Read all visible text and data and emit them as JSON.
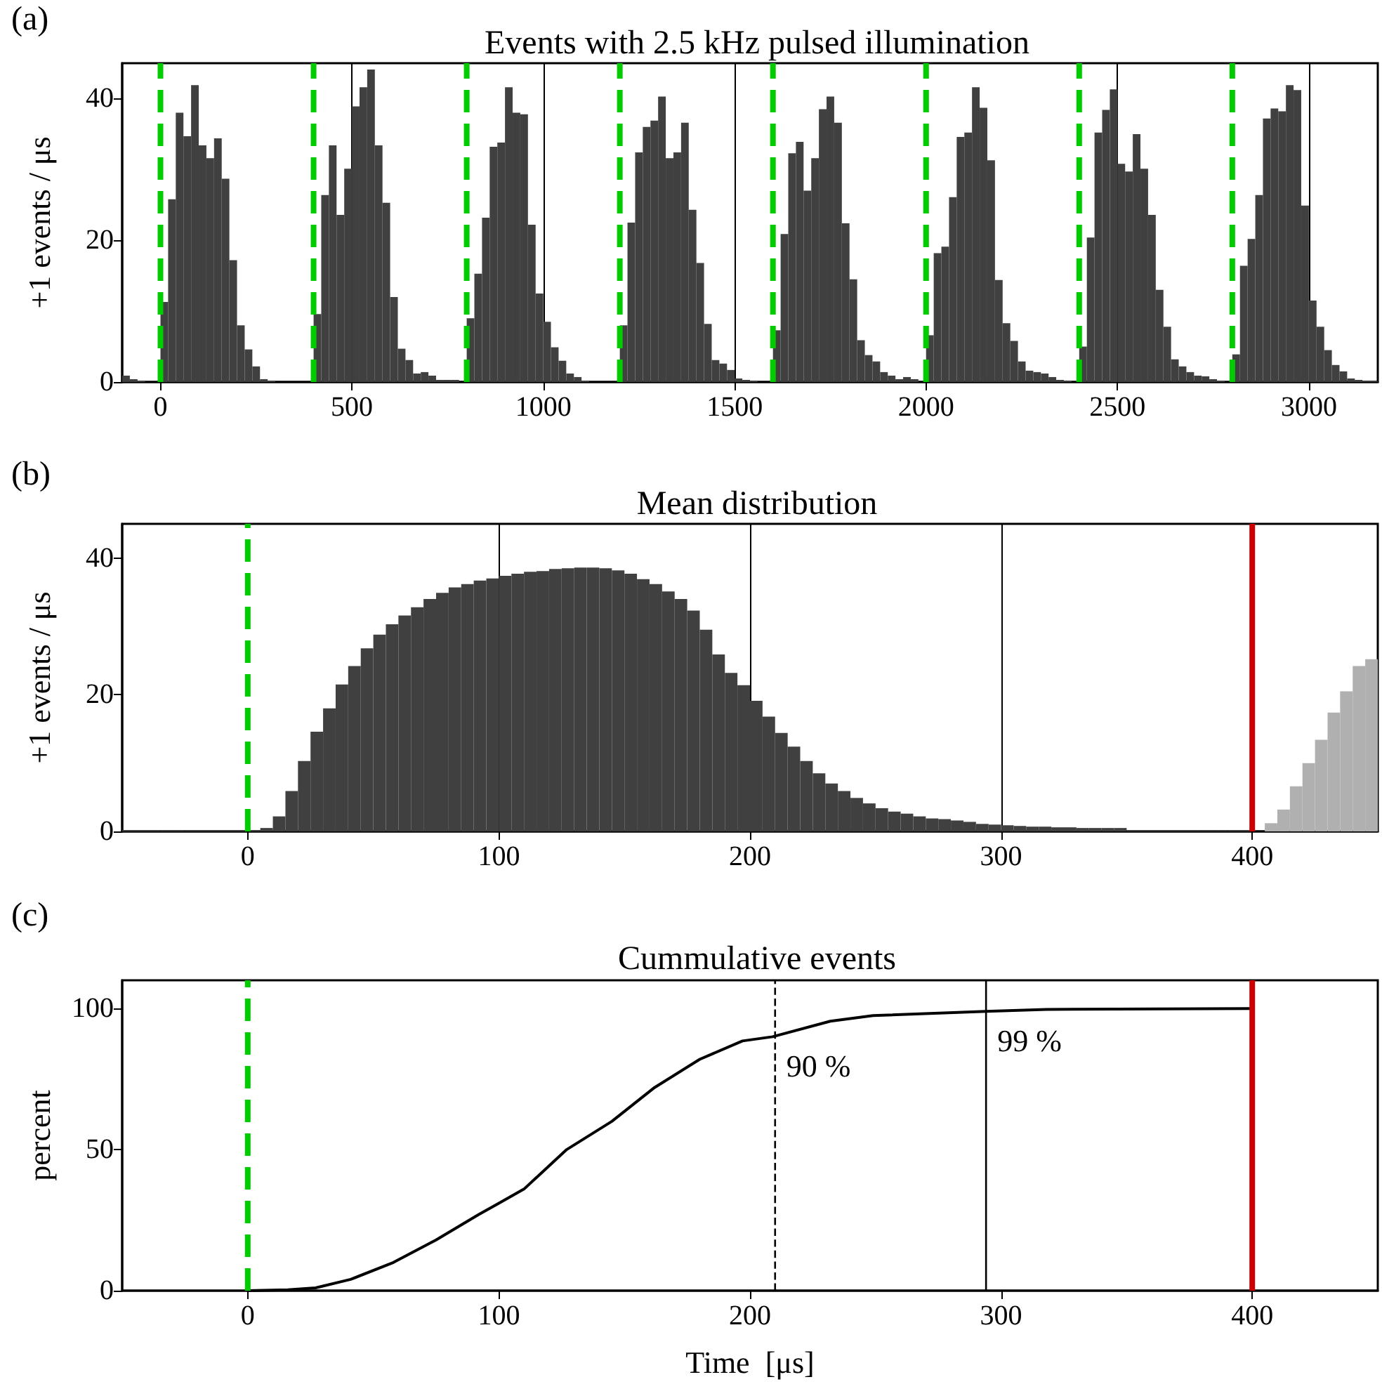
{
  "chart_data": [
    {
      "type": "histogram",
      "title": "Events with 2.5 kHz pulsed illumination",
      "ylabel": "+1 events / μs",
      "annotations": [
        "(a)"
      ],
      "color": "#404040",
      "bins": [
        -100,
        -80,
        -60,
        -40,
        -20,
        0,
        20,
        40,
        60,
        80,
        100,
        120,
        140,
        160,
        180,
        200,
        220,
        240,
        260,
        280,
        300,
        320,
        340,
        360,
        380,
        400,
        420,
        440,
        460,
        480,
        500,
        520,
        540,
        560,
        580,
        600,
        620,
        640,
        660,
        680,
        700,
        720,
        740,
        760,
        780,
        800,
        820,
        840,
        860,
        880,
        900,
        920,
        940,
        960,
        980,
        1000,
        1020,
        1040,
        1060,
        1080,
        1100,
        1120,
        1140,
        1160,
        1180,
        1200,
        1220,
        1240,
        1260,
        1280,
        1300,
        1320,
        1340,
        1360,
        1380,
        1400,
        1420,
        1440,
        1460,
        1480,
        1500,
        1520,
        1540,
        1560,
        1580,
        1600,
        1620,
        1640,
        1660,
        1680,
        1700,
        1720,
        1740,
        1760,
        1780,
        1800,
        1820,
        1840,
        1860,
        1880,
        1900,
        1920,
        1940,
        1960,
        1980,
        2000,
        2020,
        2040,
        2060,
        2080,
        2100,
        2120,
        2140,
        2160,
        2180,
        2200,
        2220,
        2240,
        2260,
        2280,
        2300,
        2320,
        2340,
        2360,
        2380,
        2400,
        2420,
        2440,
        2460,
        2480,
        2500,
        2520,
        2540,
        2560,
        2580,
        2600,
        2620,
        2640,
        2660,
        2680,
        2700,
        2720,
        2740,
        2760,
        2780,
        2800,
        2820,
        2840,
        2860,
        2880,
        2900,
        2920,
        2940,
        2960,
        2980,
        3000,
        3020,
        3040,
        3060,
        3080,
        3100,
        3120,
        3140,
        3160,
        3180
      ],
      "values": [
        0.9,
        0.4,
        0.1,
        0,
        0,
        11.3,
        25.8,
        38.0,
        34.7,
        41.9,
        33.4,
        31.6,
        34.4,
        28.7,
        17.2,
        8.0,
        4.6,
        2.2,
        0.4,
        0.1,
        0,
        0,
        0,
        0,
        0,
        9.6,
        26.4,
        33.4,
        23.6,
        30.1,
        38.9,
        41.6,
        44.1,
        33.4,
        25.3,
        12.0,
        4.7,
        3.1,
        1.2,
        1.4,
        0.9,
        0.3,
        0.3,
        0.3,
        null,
        9.0,
        15.3,
        23.2,
        33.2,
        33.8,
        41.6,
        38.0,
        37.8,
        22.2,
        12.5,
        8.5,
        4.9,
        3.0,
        1.2,
        0.7,
        0.2,
        0,
        0,
        0,
        0,
        8.0,
        22.5,
        32.4,
        36.0,
        36.9,
        40.3,
        31.6,
        32.4,
        36.6,
        24.3,
        16.8,
        8.2,
        3.1,
        2.6,
        1.7,
        0.5,
        0.3,
        0.2,
        0,
        0,
        7.3,
        20.9,
        32.3,
        33.9,
        27.0,
        31.6,
        38.5,
        40.3,
        36.6,
        22.4,
        14.5,
        5.9,
        3.8,
        2.9,
        1.4,
        0.9,
        0.4,
        0.7,
        0.4,
        null,
        6.6,
        18.2,
        19.1,
        26.1,
        34.6,
        35.2,
        41.6,
        38.7,
        31.3,
        14.4,
        8.3,
        5.8,
        2.9,
        1.6,
        1.4,
        1.2,
        0.7,
        0.3,
        0.2,
        null,
        5.0,
        20.4,
        35.2,
        38.4,
        41.3,
        30.8,
        29.7,
        35.0,
        30.1,
        23.6,
        13.0,
        7.8,
        3.2,
        2.2,
        1.4,
        0.9,
        0.8,
        0.4,
        0.2,
        null,
        3.9,
        16.4,
        20.2,
        26.4,
        37.2,
        38.6,
        38.2,
        41.9,
        41.2,
        24.9,
        11.5,
        7.8,
        4.5,
        2.4,
        1.5,
        0.5,
        0.3,
        0.2,
        0.1
      ],
      "xlim": [
        -100,
        3180
      ],
      "ylim": [
        0,
        45
      ],
      "xticks": [
        0,
        500,
        1000,
        1500,
        2000,
        2500,
        3000
      ],
      "yticks": [
        0,
        20,
        40
      ],
      "grid": "x",
      "ref_lines": [
        {
          "axis": "x",
          "value": 0,
          "color": "#00cc00",
          "line_style": "dashed"
        },
        {
          "axis": "x",
          "value": 400,
          "color": "#00cc00",
          "line_style": "dashed"
        },
        {
          "axis": "x",
          "value": 800,
          "color": "#00cc00",
          "line_style": "dashed"
        },
        {
          "axis": "x",
          "value": 1200,
          "color": "#00cc00",
          "line_style": "dashed"
        },
        {
          "axis": "x",
          "value": 1600,
          "color": "#00cc00",
          "line_style": "dashed"
        },
        {
          "axis": "x",
          "value": 2000,
          "color": "#00cc00",
          "line_style": "dashed"
        },
        {
          "axis": "x",
          "value": 2400,
          "color": "#00cc00",
          "line_style": "dashed"
        },
        {
          "axis": "x",
          "value": 2800,
          "color": "#00cc00",
          "line_style": "dashed"
        }
      ]
    },
    {
      "type": "histogram",
      "title": "Mean distribution",
      "ylabel": "+1 events / μs",
      "annotations": [
        "(b)"
      ],
      "bins": [
        -50,
        -45,
        -40,
        -35,
        -30,
        -25,
        -20,
        -15,
        -10,
        -5,
        0,
        5,
        10,
        15,
        20,
        25,
        30,
        35,
        40,
        45,
        50,
        55,
        60,
        65,
        70,
        75,
        80,
        85,
        90,
        95,
        100,
        105,
        110,
        115,
        120,
        125,
        130,
        135,
        140,
        145,
        150,
        155,
        160,
        165,
        170,
        175,
        180,
        185,
        190,
        195,
        200,
        205,
        210,
        215,
        220,
        225,
        230,
        235,
        240,
        245,
        250,
        255,
        260,
        265,
        270,
        275,
        280,
        285,
        290,
        295,
        300,
        305,
        310,
        315,
        320,
        325,
        330,
        335,
        340,
        345,
        350,
        355,
        360,
        365,
        370,
        375,
        380,
        385,
        390,
        395,
        400,
        405,
        410,
        415,
        420,
        425,
        430,
        435,
        440,
        445,
        450
      ],
      "series": [
        {
          "color": "#404040",
          "values": [
            0.2,
            0.2,
            0.2,
            0.2,
            0.2,
            0.2,
            0.2,
            0.2,
            0.1,
            0.1,
            0.2,
            0.5,
            2.2,
            5.9,
            10.3,
            14.6,
            18.0,
            21.5,
            24.2,
            26.8,
            28.8,
            30.3,
            31.6,
            32.8,
            34.0,
            34.9,
            35.7,
            36.2,
            36.7,
            37.0,
            37.4,
            37.7,
            38.0,
            38.1,
            38.4,
            38.5,
            38.6,
            38.6,
            38.5,
            38.2,
            37.7,
            36.9,
            36.2,
            35.1,
            34.0,
            32.3,
            29.5,
            25.9,
            23.2,
            21.4,
            19.1,
            16.8,
            14.4,
            12.4,
            10.3,
            8.5,
            7.0,
            5.9,
            4.9,
            4.1,
            3.4,
            2.9,
            2.6,
            2.2,
            1.9,
            1.8,
            1.6,
            1.4,
            1.1,
            1.0,
            0.9,
            0.8,
            0.7,
            0.7,
            0.6,
            0.6,
            0.5,
            0.5,
            0.5,
            0.5,
            0.2,
            0.2,
            0.2,
            0.2,
            0.2,
            0.2,
            0.2,
            0.2,
            0.2,
            0.2,
            null,
            null,
            null,
            null,
            null,
            null,
            null,
            null,
            null,
            null
          ]
        },
        {
          "color": "#b0b0b0",
          "values": [
            null,
            null,
            null,
            null,
            null,
            null,
            null,
            null,
            null,
            null,
            null,
            null,
            null,
            null,
            null,
            null,
            null,
            null,
            null,
            null,
            null,
            null,
            null,
            null,
            null,
            null,
            null,
            null,
            null,
            null,
            null,
            null,
            null,
            null,
            null,
            null,
            null,
            null,
            null,
            null,
            null,
            null,
            null,
            null,
            null,
            null,
            null,
            null,
            null,
            null,
            null,
            null,
            null,
            null,
            null,
            null,
            null,
            null,
            null,
            null,
            null,
            null,
            null,
            null,
            null,
            null,
            null,
            null,
            null,
            null,
            null,
            null,
            null,
            null,
            null,
            null,
            null,
            null,
            null,
            null,
            null,
            null,
            null,
            null,
            null,
            null,
            null,
            null,
            null,
            null,
            null,
            1.2,
            3.2,
            6.6,
            10.0,
            13.4,
            17.4,
            20.5,
            24.2,
            25.2
          ]
        }
      ],
      "xlim": [
        -50,
        450
      ],
      "ylim": [
        0,
        45
      ],
      "xticks": [
        0,
        100,
        200,
        300,
        400
      ],
      "yticks": [
        0,
        20,
        40
      ],
      "grid": "x",
      "ref_lines": [
        {
          "axis": "x",
          "value": 0,
          "color": "#00cc00",
          "line_style": "dashed"
        },
        {
          "axis": "x",
          "value": 400,
          "color": "#cc0000",
          "line_style": "solid"
        }
      ]
    },
    {
      "type": "line",
      "title": "Cummulative events",
      "xlabel": "Time  [μs]",
      "ylabel": "percent",
      "annotations": [
        "(c)",
        {
          "text": "90 %",
          "x": 210,
          "y": 90
        },
        {
          "text": "99 %",
          "x": 294,
          "y": 99
        }
      ],
      "color": "#000000",
      "x": [
        0,
        16,
        27,
        41,
        58,
        75,
        92,
        100,
        110,
        127,
        145,
        162,
        180,
        197,
        209,
        232,
        249,
        294,
        318,
        400
      ],
      "values": [
        0,
        0.3,
        1,
        4,
        10,
        18,
        27,
        31,
        36,
        50,
        60,
        72,
        82,
        88.5,
        90,
        95.5,
        97.5,
        99,
        99.7,
        100
      ],
      "xlim": [
        -50,
        450
      ],
      "ylim": [
        0,
        110
      ],
      "xticks": [
        0,
        100,
        200,
        300,
        400
      ],
      "yticks": [
        0,
        50,
        100
      ],
      "ref_lines": [
        {
          "axis": "x",
          "value": 0,
          "color": "#00cc00",
          "line_style": "dashed"
        },
        {
          "axis": "x",
          "value": 210,
          "color": "#000000",
          "line_style": "dashed"
        },
        {
          "axis": "x",
          "value": 294,
          "color": "#000000",
          "line_style": "solid"
        },
        {
          "axis": "x",
          "value": 400,
          "color": "#cc0000",
          "line_style": "solid"
        }
      ]
    }
  ]
}
